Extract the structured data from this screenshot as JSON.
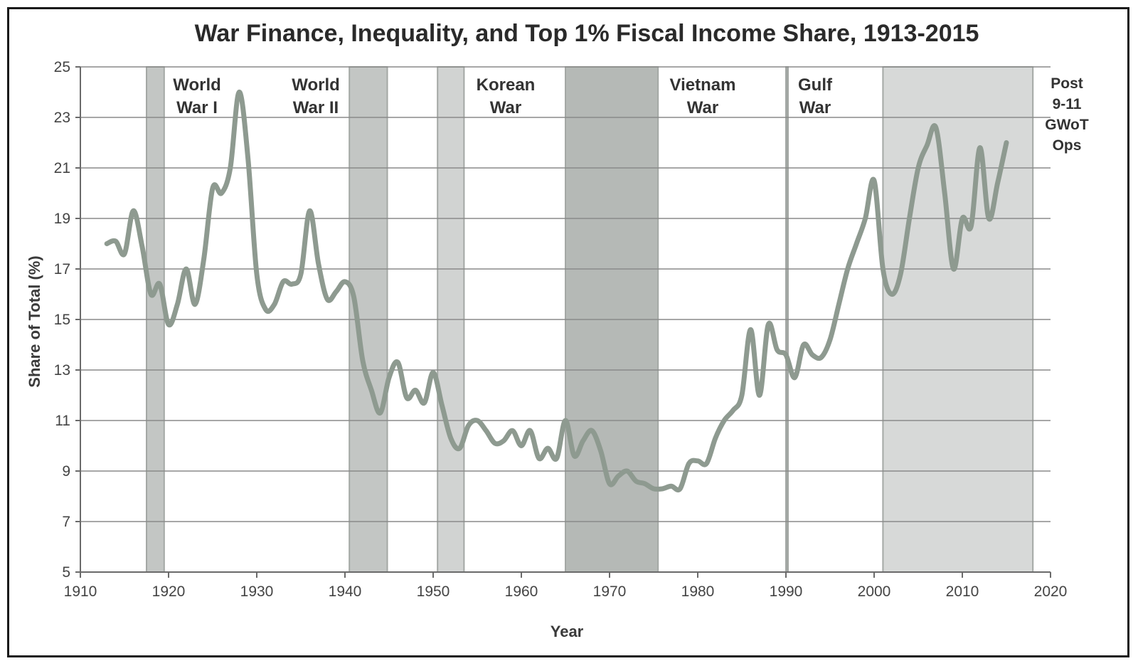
{
  "chart_data": {
    "type": "line",
    "title": "War Finance, Inequality, and Top 1% Fiscal Income Share, 1913-2015",
    "xlabel": "Year",
    "ylabel": "Share of Total (%)",
    "xlim": [
      1910,
      2020
    ],
    "ylim": [
      5,
      25
    ],
    "xticks": [
      1910,
      1920,
      1930,
      1940,
      1950,
      1960,
      1970,
      1980,
      1990,
      2000,
      2010,
      2020
    ],
    "yticks": [
      5,
      7,
      9,
      11,
      13,
      15,
      17,
      19,
      21,
      23,
      25
    ],
    "grid": "horizontal",
    "line_color": "#8e9a90",
    "war_periods": [
      {
        "label_lines": [
          "World",
          "War I"
        ],
        "start": 1917.5,
        "end": 1919.5,
        "shade": "#c3c6c4"
      },
      {
        "label_lines": [
          "World",
          "War II"
        ],
        "start": 1940.5,
        "end": 1944.8,
        "shade": "#c3c6c4"
      },
      {
        "label_lines": [
          "Korean",
          "War"
        ],
        "start": 1950.5,
        "end": 1953.5,
        "shade": "#d1d3d2"
      },
      {
        "label_lines": [
          "Vietnam",
          "War"
        ],
        "start": 1965,
        "end": 1975.5,
        "shade": "#b5b9b6"
      },
      {
        "label_lines": [
          "Gulf",
          "War"
        ],
        "start": 1990,
        "end": 1990.2,
        "shade": "#a2a7a3"
      },
      {
        "label_lines": [
          "Post",
          "9-11",
          "GWoT",
          "Ops"
        ],
        "start": 2001,
        "end": 2018,
        "shade": "#d7d9d8"
      }
    ],
    "series": [
      {
        "x": [
          1913,
          1914,
          1915,
          1916,
          1917,
          1918,
          1919,
          1920,
          1921,
          1922,
          1923,
          1924,
          1925,
          1926,
          1927,
          1928,
          1929,
          1930,
          1931,
          1932,
          1933,
          1934,
          1935,
          1936,
          1937,
          1938,
          1939,
          1940,
          1941,
          1942,
          1943,
          1944,
          1945,
          1946,
          1947,
          1948,
          1949,
          1950,
          1951,
          1952,
          1953,
          1954,
          1955,
          1956,
          1957,
          1958,
          1959,
          1960,
          1961,
          1962,
          1963,
          1964,
          1965,
          1966,
          1967,
          1968,
          1969,
          1970,
          1971,
          1972,
          1973,
          1974,
          1975,
          1976,
          1977,
          1978,
          1979,
          1980,
          1981,
          1982,
          1983,
          1984,
          1985,
          1986,
          1987,
          1988,
          1989,
          1990,
          1991,
          1992,
          1993,
          1994,
          1995,
          1996,
          1997,
          1998,
          1999,
          2000,
          2001,
          2002,
          2003,
          2004,
          2005,
          2006,
          2007,
          2008,
          2009,
          2010,
          2011,
          2012,
          2013,
          2014,
          2015
        ],
        "y": [
          18.0,
          18.1,
          17.6,
          19.3,
          17.9,
          16.0,
          16.4,
          14.8,
          15.6,
          17.0,
          15.6,
          17.4,
          20.2,
          20.0,
          21.0,
          24.0,
          21.4,
          16.8,
          15.4,
          15.6,
          16.5,
          16.4,
          16.8,
          19.3,
          17.2,
          15.8,
          16.1,
          16.5,
          15.9,
          13.4,
          12.2,
          11.3,
          12.7,
          13.3,
          11.9,
          12.2,
          11.7,
          12.9,
          11.6,
          10.3,
          9.9,
          10.8,
          11.0,
          10.6,
          10.1,
          10.2,
          10.6,
          10.0,
          10.6,
          9.5,
          9.9,
          9.5,
          11.0,
          9.6,
          10.2,
          10.6,
          9.8,
          8.5,
          8.8,
          9.0,
          8.6,
          8.5,
          8.3,
          8.3,
          8.4,
          8.3,
          9.3,
          9.4,
          9.3,
          10.3,
          11.0,
          11.4,
          12.0,
          14.6,
          12.0,
          14.8,
          13.8,
          13.6,
          12.7,
          14.0,
          13.6,
          13.5,
          14.2,
          15.6,
          17.0,
          18.0,
          19.0,
          20.5,
          17.0,
          16.0,
          16.8,
          19.0,
          21.0,
          21.9,
          22.6,
          20.0,
          17.0,
          19.0,
          18.7,
          21.8,
          19.0,
          20.4,
          22.0
        ]
      }
    ]
  }
}
